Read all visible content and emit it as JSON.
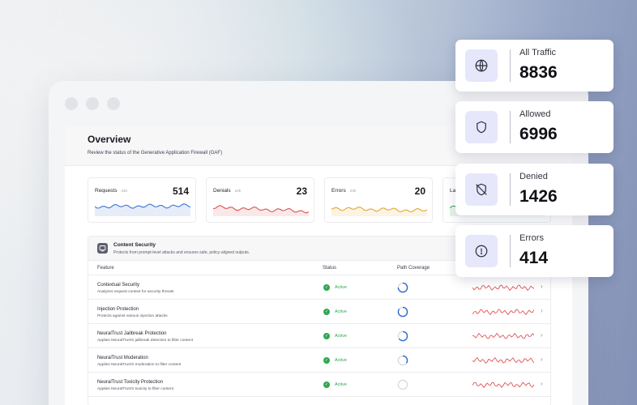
{
  "overview": {
    "title": "Overview",
    "subtitle": "Review the status of the Generative Application Firewall (GAF)"
  },
  "metrics": [
    {
      "label": "Requests",
      "period": "24h",
      "value": "514",
      "color": "#2f6ad0"
    },
    {
      "label": "Denials",
      "period": "24h",
      "value": "23",
      "color": "#d64545"
    },
    {
      "label": "Errors",
      "period": "24h",
      "value": "20",
      "color": "#e0a020"
    },
    {
      "label": "Lat",
      "period": "",
      "value": "",
      "color": "#3aa552"
    }
  ],
  "section": {
    "title": "Content Security",
    "description": "Protects from prompt-level attacks and ensures safe, policy-aligned outputs.",
    "columns": {
      "feature": "Feature",
      "status": "Status",
      "coverage": "Path Coverage"
    },
    "rows": [
      {
        "name": "Contextual Security",
        "desc": "Analyzes request context for security threats",
        "status": "Active",
        "coverage": 0.75
      },
      {
        "name": "Injection Protection",
        "desc": "Protects against various injection attacks",
        "status": "Active",
        "coverage": 0.85
      },
      {
        "name": "NeuralTrust Jailbreak Protection",
        "desc": "Applies NeuralTrust's jailbreak detection to filter content",
        "status": "Active",
        "coverage": 0.65
      },
      {
        "name": "NeuralTrust Moderation",
        "desc": "Applies NeuralTrust's moderation to filter content",
        "status": "Active",
        "coverage": 0.35
      },
      {
        "name": "NeuralTrust Toxicity Protection",
        "desc": "Applies NeuralTrust's toxicity to filter content",
        "status": "Active",
        "coverage": 0.0
      }
    ]
  },
  "stats": [
    {
      "label": "All Traffic",
      "value": "8836",
      "icon": "globe-icon"
    },
    {
      "label": "Allowed",
      "value": "6996",
      "icon": "shield-icon"
    },
    {
      "label": "Denied",
      "value": "1426",
      "icon": "shield-off-icon"
    },
    {
      "label": "Errors",
      "value": "414",
      "icon": "alert-circle-icon"
    }
  ],
  "colors": {
    "accent": "#2f6ad0",
    "active": "#2fa84f",
    "trend": "#e05555",
    "icon_bg": "#e6e7fb"
  }
}
